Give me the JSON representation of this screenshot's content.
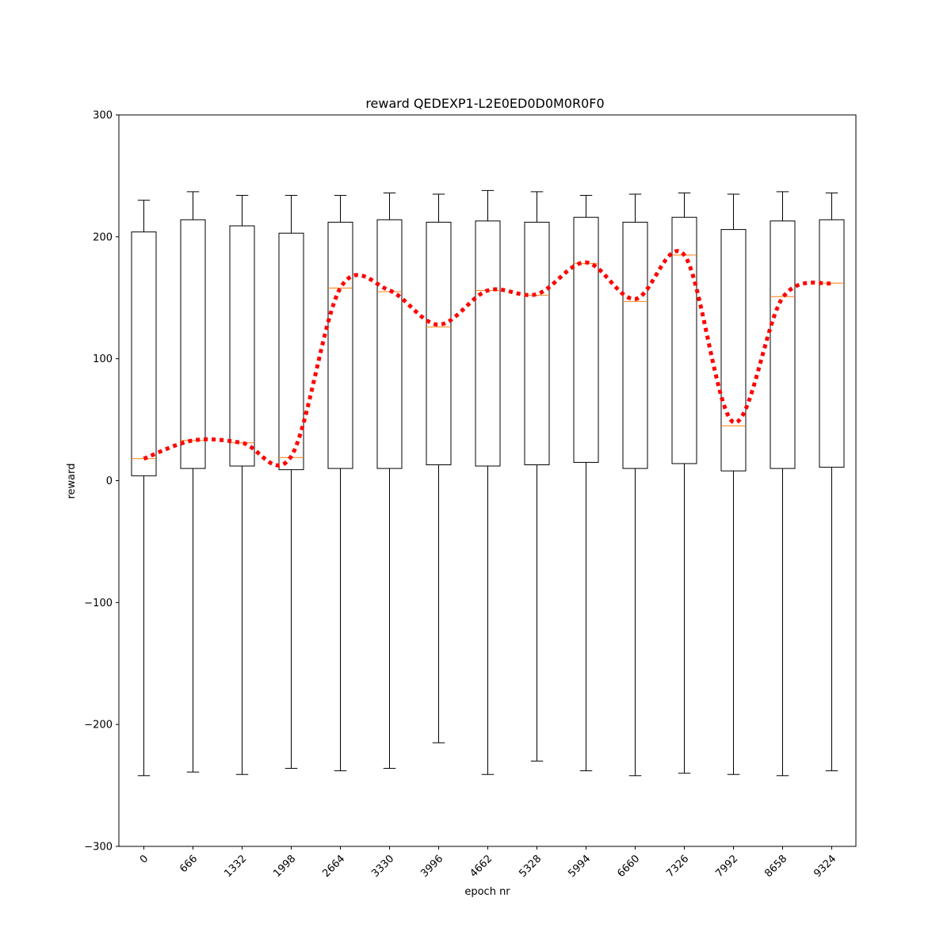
{
  "chart_data": {
    "type": "box",
    "title": "reward QEDEXP1-L2E0ED0D0M0R0F0",
    "xlabel": "epoch nr",
    "ylabel": "reward",
    "ylim": [
      -300,
      300
    ],
    "yticks": [
      -300,
      -200,
      -100,
      0,
      100,
      200,
      300
    ],
    "categories": [
      "0",
      "666",
      "1332",
      "1998",
      "2664",
      "3330",
      "3996",
      "4662",
      "5328",
      "5994",
      "6660",
      "7326",
      "7992",
      "8658",
      "9324"
    ],
    "boxes": [
      {
        "whisker_low": -242,
        "q1": 4,
        "median": 18,
        "q3": 204,
        "whisker_high": 230
      },
      {
        "whisker_low": -239,
        "q1": 10,
        "median": 33,
        "q3": 214,
        "whisker_high": 237
      },
      {
        "whisker_low": -241,
        "q1": 12,
        "median": 31,
        "q3": 209,
        "whisker_high": 234
      },
      {
        "whisker_low": -236,
        "q1": 9,
        "median": 19,
        "q3": 203,
        "whisker_high": 234
      },
      {
        "whisker_low": -238,
        "q1": 10,
        "median": 158,
        "q3": 212,
        "whisker_high": 234
      },
      {
        "whisker_low": -236,
        "q1": 10,
        "median": 155,
        "q3": 214,
        "whisker_high": 236
      },
      {
        "whisker_low": -215,
        "q1": 13,
        "median": 126,
        "q3": 212,
        "whisker_high": 235
      },
      {
        "whisker_low": -241,
        "q1": 12,
        "median": 156,
        "q3": 213,
        "whisker_high": 238
      },
      {
        "whisker_low": -230,
        "q1": 13,
        "median": 152,
        "q3": 212,
        "whisker_high": 237
      },
      {
        "whisker_low": -238,
        "q1": 15,
        "median": 178,
        "q3": 216,
        "whisker_high": 234
      },
      {
        "whisker_low": -242,
        "q1": 10,
        "median": 147,
        "q3": 212,
        "whisker_high": 235
      },
      {
        "whisker_low": -240,
        "q1": 14,
        "median": 185,
        "q3": 216,
        "whisker_high": 236
      },
      {
        "whisker_low": -241,
        "q1": 8,
        "median": 45,
        "q3": 206,
        "whisker_high": 235
      },
      {
        "whisker_low": -242,
        "q1": 10,
        "median": 151,
        "q3": 213,
        "whisker_high": 237
      },
      {
        "whisker_low": -238,
        "q1": 11,
        "median": 162,
        "q3": 214,
        "whisker_high": 236
      }
    ],
    "mean_line": {
      "values": [
        18,
        33,
        31,
        20,
        158,
        156,
        128,
        156,
        153,
        179,
        149,
        185,
        48,
        150,
        162
      ],
      "color": "#ff0000",
      "style": "dotted"
    },
    "median_color": "#ff7f0e",
    "box_color": "#000000",
    "grid": false,
    "legend": "none"
  }
}
